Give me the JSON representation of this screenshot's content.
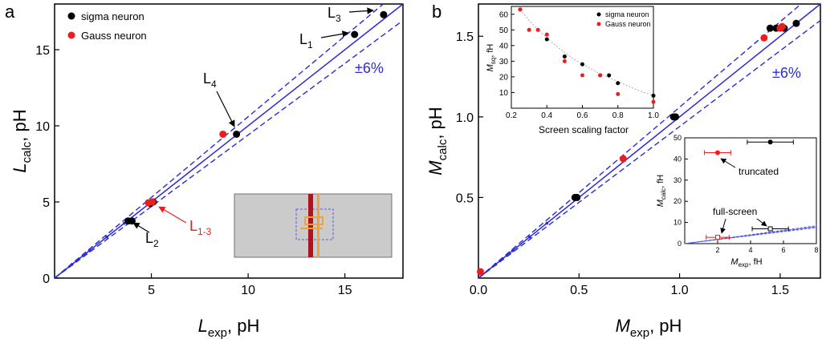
{
  "chart_data": [
    {
      "type": "scatter",
      "panel_letter": "a",
      "xlabel": {
        "main": "L",
        "sub": "exp",
        "unit": ", pH"
      },
      "ylabel": {
        "main": "L",
        "sub": "calc",
        "unit": ", pH"
      },
      "xlim": [
        0,
        18
      ],
      "ylim": [
        0,
        18
      ],
      "xticks": [
        5,
        10,
        15
      ],
      "yticks": [
        0,
        5,
        10,
        15
      ],
      "legend": [
        {
          "label": "sigma neuron",
          "color": "#000000"
        },
        {
          "label": "Gauss neuron",
          "color": "#ee1c1c"
        }
      ],
      "band_label": "±6%",
      "band_fraction": 0.06,
      "series": [
        {
          "name": "sigma neuron",
          "color": "#000000",
          "points": [
            [
              3.8,
              3.75
            ],
            [
              4.0,
              3.75
            ],
            [
              4.95,
              4.9
            ],
            [
              5.1,
              5.0
            ],
            [
              9.4,
              9.45
            ],
            [
              15.5,
              16.0
            ],
            [
              17.0,
              17.3
            ]
          ]
        },
        {
          "name": "Gauss neuron",
          "color": "#ee1c1c",
          "points": [
            [
              4.85,
              4.95
            ],
            [
              5.05,
              5.0
            ],
            [
              8.7,
              9.45
            ]
          ]
        }
      ],
      "annotations": [
        {
          "main": "L",
          "sub": "3",
          "color": "#000000"
        },
        {
          "main": "L",
          "sub": "1",
          "color": "#000000"
        },
        {
          "main": "L",
          "sub": "4",
          "color": "#000000"
        },
        {
          "main": "L",
          "sub": "2",
          "color": "#000000"
        },
        {
          "main": "L",
          "sub": "1-3",
          "color": "#ee1c1c"
        }
      ]
    },
    {
      "type": "scatter",
      "panel_letter": "b",
      "xlabel": {
        "main": "M",
        "sub": "exp",
        "unit": ", pH"
      },
      "ylabel": {
        "main": "M",
        "sub": "calc",
        "unit": ", pH"
      },
      "xlim": [
        0,
        1.7
      ],
      "ylim": [
        0,
        1.7
      ],
      "xticks": [
        0.0,
        0.5,
        1.0,
        1.5
      ],
      "yticks": [
        0.5,
        1.0,
        1.5
      ],
      "band_label": "±6%",
      "band_fraction": 0.06,
      "series": [
        {
          "name": "sigma neuron",
          "color": "#000000",
          "points": [
            [
              0.48,
              0.5
            ],
            [
              0.49,
              0.5
            ],
            [
              0.97,
              1.0
            ],
            [
              0.98,
              1.0
            ],
            [
              1.45,
              1.55
            ],
            [
              1.48,
              1.55
            ],
            [
              1.52,
              1.55
            ],
            [
              1.58,
              1.58
            ]
          ]
        },
        {
          "name": "Gauss neuron",
          "color": "#ee1c1c",
          "points": [
            [
              0.01,
              0.04
            ],
            [
              0.72,
              0.74
            ],
            [
              1.42,
              1.49
            ],
            [
              1.5,
              1.55
            ],
            [
              1.51,
              1.56
            ]
          ]
        }
      ]
    },
    {
      "type": "scatter",
      "role": "inset-top",
      "xlabel": "Screen scaling factor",
      "ylabel": {
        "main": "M",
        "sub": "sq",
        "unit": ", fH"
      },
      "xlim": [
        0.2,
        1.0
      ],
      "ylim": [
        0,
        65
      ],
      "xticks": [
        0.2,
        0.4,
        0.6,
        0.8,
        1.0
      ],
      "yticks": [
        10,
        20,
        30,
        40,
        50,
        60
      ],
      "legend": [
        {
          "label": "sigma neuron",
          "color": "#000000"
        },
        {
          "label": "Gauss neuron",
          "color": "#ee1c1c"
        }
      ],
      "fit": [
        [
          0.25,
          63
        ],
        [
          0.3,
          56
        ],
        [
          0.35,
          50
        ],
        [
          0.4,
          45
        ],
        [
          0.45,
          40
        ],
        [
          0.5,
          35.5
        ],
        [
          0.55,
          31.5
        ],
        [
          0.6,
          28
        ],
        [
          0.65,
          25
        ],
        [
          0.7,
          22
        ],
        [
          0.75,
          19.5
        ],
        [
          0.8,
          17
        ],
        [
          0.85,
          14.5
        ],
        [
          0.9,
          12
        ],
        [
          0.95,
          10
        ],
        [
          1.0,
          8
        ]
      ],
      "series": [
        {
          "name": "sigma neuron",
          "color": "#000000",
          "points": [
            [
              0.25,
              63
            ],
            [
              0.4,
              44
            ],
            [
              0.5,
              33
            ],
            [
              0.6,
              28
            ],
            [
              0.7,
              21
            ],
            [
              0.75,
              21
            ],
            [
              0.8,
              16
            ],
            [
              1.0,
              8
            ]
          ]
        },
        {
          "name": "Gauss neuron",
          "color": "#ee1c1c",
          "points": [
            [
              0.25,
              63
            ],
            [
              0.3,
              50
            ],
            [
              0.35,
              50
            ],
            [
              0.4,
              47
            ],
            [
              0.5,
              30
            ],
            [
              0.6,
              21
            ],
            [
              0.7,
              21
            ],
            [
              0.8,
              9
            ],
            [
              1.0,
              4
            ]
          ]
        }
      ]
    },
    {
      "type": "scatter",
      "role": "inset-bottom",
      "xlabel": {
        "main": "M",
        "sub": "exp",
        "unit": ", fH"
      },
      "ylabel": {
        "main": "M",
        "sub": "calc",
        "unit": ", fH"
      },
      "xlim": [
        0,
        8
      ],
      "ylim": [
        0,
        50
      ],
      "xticks": [
        2,
        4,
        6,
        8
      ],
      "yticks": [
        0,
        10,
        20,
        30,
        40,
        50
      ],
      "annotations": [
        {
          "label": "truncated"
        },
        {
          "label": "full-screen"
        }
      ],
      "series": [
        {
          "name": "sigma neuron",
          "color": "#000000",
          "filled": true,
          "points": [
            [
              5.2,
              48
            ]
          ],
          "xerr": [
            1.4
          ]
        },
        {
          "name": "Gauss neuron",
          "color": "#ee1c1c",
          "filled": true,
          "points": [
            [
              2.0,
              43
            ]
          ],
          "xerr": [
            0.8
          ]
        },
        {
          "name": "sigma neuron",
          "color": "#000000",
          "filled": false,
          "points": [
            [
              5.2,
              7
            ]
          ],
          "xerr": [
            1.1
          ]
        },
        {
          "name": "Gauss neuron",
          "color": "#ee1c1c",
          "filled": false,
          "points": [
            [
              2.0,
              3
            ]
          ],
          "xerr": [
            0.7
          ]
        }
      ]
    }
  ]
}
